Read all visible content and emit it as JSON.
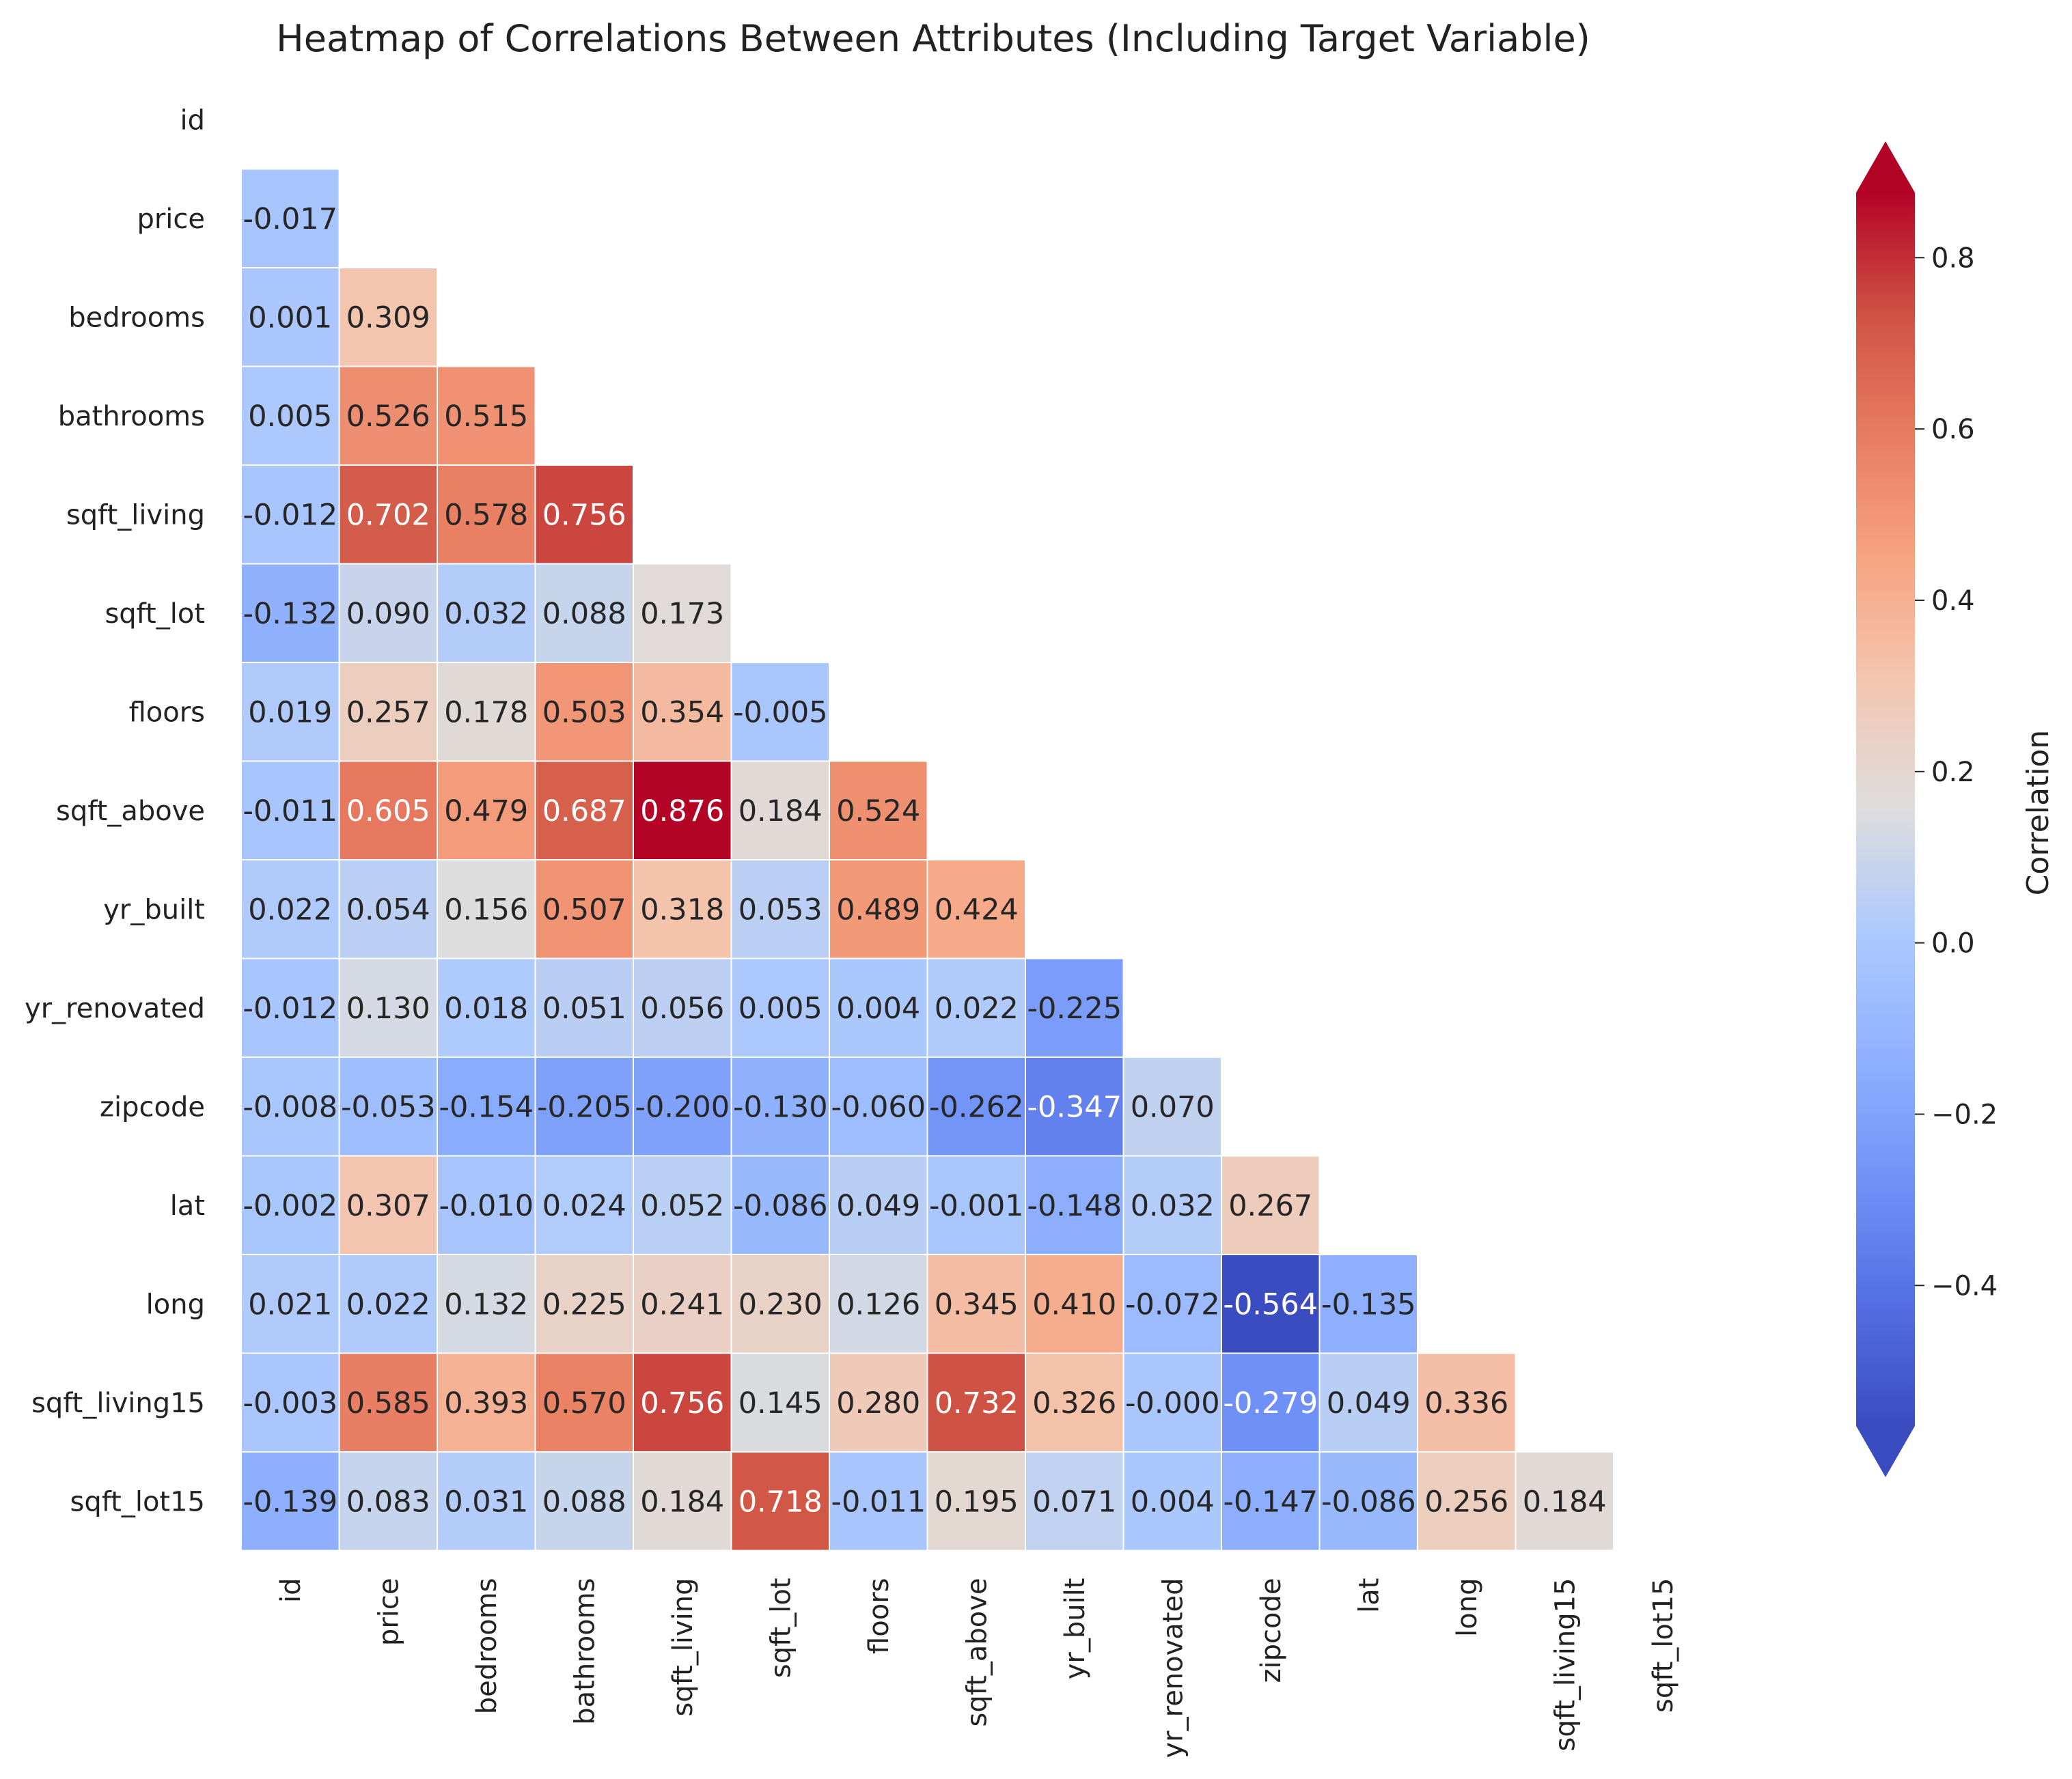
{
  "chart_data": {
    "type": "heatmap",
    "title": "Heatmap of Correlations Between Attributes (Including Target Variable)",
    "mask": "upper-triangle-including-diagonal",
    "labels": [
      "id",
      "price",
      "bedrooms",
      "bathrooms",
      "sqft_living",
      "sqft_lot",
      "floors",
      "sqft_above",
      "yr_built",
      "yr_renovated",
      "zipcode",
      "lat",
      "long",
      "sqft_living15",
      "sqft_lot15"
    ],
    "rows": [
      [],
      [
        "-0.017"
      ],
      [
        "0.001",
        "0.309"
      ],
      [
        "0.005",
        "0.526",
        "0.515"
      ],
      [
        "-0.012",
        "0.702",
        "0.578",
        "0.756"
      ],
      [
        "-0.132",
        "0.090",
        "0.032",
        "0.088",
        "0.173"
      ],
      [
        "0.019",
        "0.257",
        "0.178",
        "0.503",
        "0.354",
        "-0.005"
      ],
      [
        "-0.011",
        "0.605",
        "0.479",
        "0.687",
        "0.876",
        "0.184",
        "0.524"
      ],
      [
        "0.022",
        "0.054",
        "0.156",
        "0.507",
        "0.318",
        "0.053",
        "0.489",
        "0.424"
      ],
      [
        "-0.012",
        "0.130",
        "0.018",
        "0.051",
        "0.056",
        "0.005",
        "0.004",
        "0.022",
        "-0.225"
      ],
      [
        "-0.008",
        "-0.053",
        "-0.154",
        "-0.205",
        "-0.200",
        "-0.130",
        "-0.060",
        "-0.262",
        "-0.347",
        "0.070"
      ],
      [
        "-0.002",
        "0.307",
        "-0.010",
        "0.024",
        "0.052",
        "-0.086",
        "0.049",
        "-0.001",
        "-0.148",
        "0.032",
        "0.267"
      ],
      [
        "0.021",
        "0.022",
        "0.132",
        "0.225",
        "0.241",
        "0.230",
        "0.126",
        "0.345",
        "0.410",
        "-0.072",
        "-0.564",
        "-0.135"
      ],
      [
        "-0.003",
        "0.585",
        "0.393",
        "0.570",
        "0.756",
        "0.145",
        "0.280",
        "0.732",
        "0.326",
        "-0.000",
        "-0.279",
        "0.049",
        "0.336"
      ],
      [
        "-0.139",
        "0.083",
        "0.031",
        "0.088",
        "0.184",
        "0.718",
        "-0.011",
        "0.195",
        "0.071",
        "0.004",
        "-0.147",
        "-0.086",
        "0.256",
        "0.184"
      ]
    ],
    "colorbar": {
      "label": "Correlation",
      "vmin": -0.564,
      "vmax": 0.876,
      "extend": "both",
      "ticks": [
        "−0.4",
        "−0.2",
        "0.0",
        "0.2",
        "0.4",
        "0.6",
        "0.8"
      ],
      "tick_values": [
        -0.4,
        -0.2,
        0.0,
        0.2,
        0.4,
        0.6,
        0.8
      ],
      "colormap": "coolwarm"
    }
  }
}
